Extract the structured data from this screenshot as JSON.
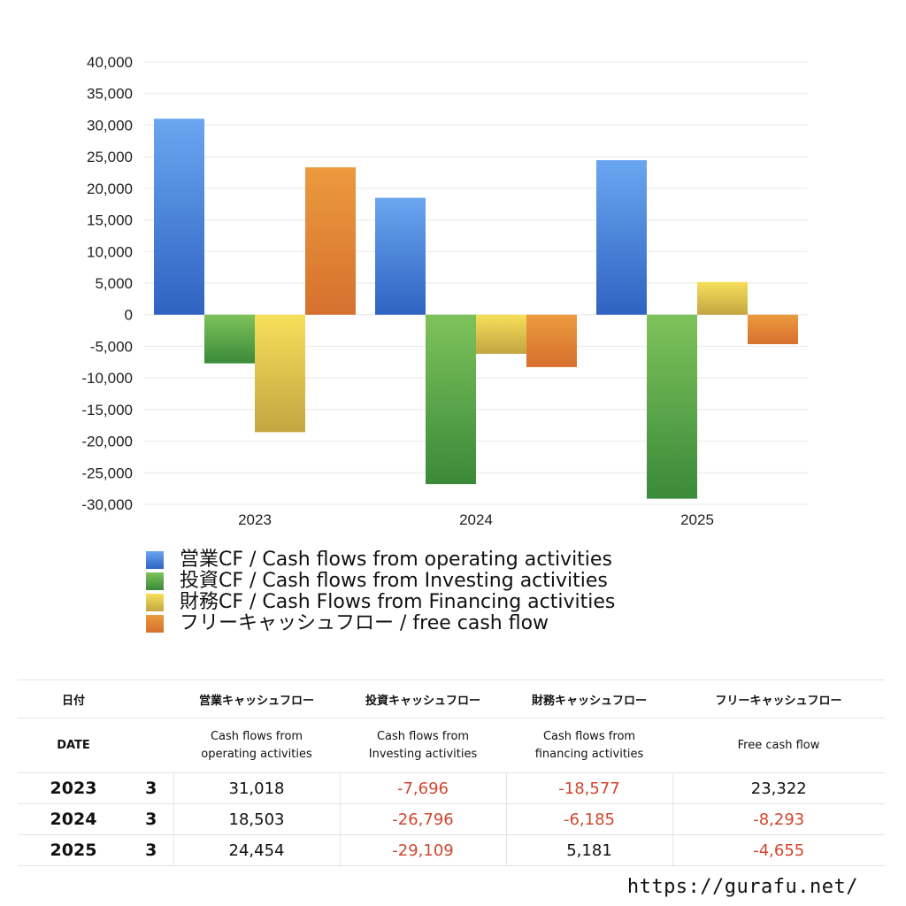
{
  "chart_data": {
    "type": "bar",
    "categories": [
      "2023",
      "2024",
      "2025"
    ],
    "series": [
      {
        "name": "営業CF / Cash flows from operating activities",
        "values": [
          31018,
          18503,
          24454
        ],
        "color_top": "#6aa6f0",
        "color_bottom": "#2f63c2"
      },
      {
        "name": "投資CF / Cash flows from Investing activities",
        "values": [
          -7696,
          -26796,
          -29109
        ],
        "color_top": "#7ec25a",
        "color_bottom": "#3a8a3a"
      },
      {
        "name": "財務CF / Cash Flows from Financing activities",
        "values": [
          -18577,
          -6185,
          5181
        ],
        "color_top": "#f6df5a",
        "color_bottom": "#c4a542"
      },
      {
        "name": "フリーキャッシュフロー / free cash flow",
        "values": [
          23322,
          -8293,
          -4655
        ],
        "color_top": "#ec9a3e",
        "color_bottom": "#d6702e"
      }
    ],
    "ylim": [
      -30000,
      40000
    ],
    "yticks": [
      "40,000",
      "35,000",
      "30,000",
      "25,000",
      "20,000",
      "15,000",
      "10,000",
      "5,000",
      "0",
      "-5,000",
      "-10,000",
      "-15,000",
      "-20,000",
      "-25,000",
      "-30,000"
    ],
    "grid": true,
    "legend_position": "bottom"
  },
  "table": {
    "header_jp": [
      "日付",
      "",
      "営業キャッシュフロー",
      "投資キャッシュフロー",
      "財務キャッシュフロー",
      "フリーキャッシュフロー"
    ],
    "header_en": [
      "DATE",
      "",
      "Cash flows from\noperating activities",
      "Cash flows from\nInvesting activities",
      "Cash flows from\nfinancing activities",
      "Free cash flow"
    ],
    "rows": [
      {
        "year": "2023",
        "month": "3",
        "op": "31,018",
        "inv": "-7,696",
        "fin": "-18,577",
        "fcf": "23,322"
      },
      {
        "year": "2024",
        "month": "3",
        "op": "18,503",
        "inv": "-26,796",
        "fin": "-6,185",
        "fcf": "-8,293"
      },
      {
        "year": "2025",
        "month": "3",
        "op": "24,454",
        "inv": "-29,109",
        "fin": "5,181",
        "fcf": "-4,655"
      }
    ],
    "negative_color": "#d0462e"
  },
  "footer": {
    "url": "https://gurafu.net/"
  }
}
